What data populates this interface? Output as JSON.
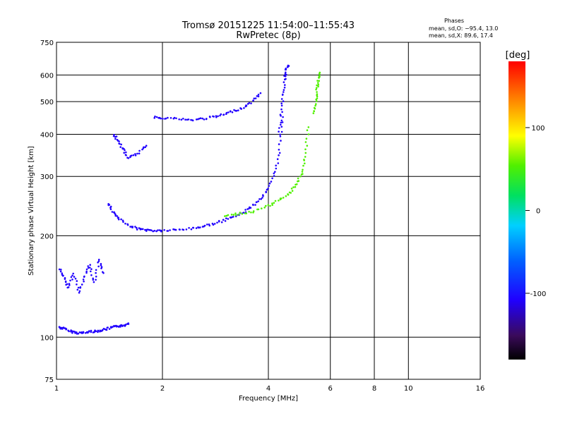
{
  "chart_data": {
    "type": "scatter",
    "title": "Tromsø 20151225 11:54:00–11:55:43",
    "subtitle": "RwPretec (8p)",
    "xlabel": "Frequency [MHz]",
    "ylabel": "Stationary phase Virtual Height [km]",
    "x_scale": "log",
    "y_scale": "log",
    "xlim": [
      1,
      16
    ],
    "ylim": [
      75,
      750
    ],
    "x_ticks": [
      1,
      2,
      4,
      6,
      8,
      10,
      16
    ],
    "y_ticks": [
      75,
      100,
      200,
      300,
      400,
      500,
      600,
      750
    ],
    "x_grid": [
      1,
      2,
      4,
      6,
      8,
      10,
      16
    ],
    "y_grid": [
      100,
      200,
      300,
      400,
      500,
      600
    ],
    "grid": true,
    "stats": {
      "heading": "Phases",
      "line_o": "mean, sd,O: −95.4, 13.0",
      "line_x": "mean, sd,X:  89.6, 17.4"
    },
    "colorbar": {
      "label": "[deg]",
      "min": -180,
      "max": 180,
      "ticks": [
        -100,
        0,
        100
      ]
    },
    "series": [
      {
        "phase": "O",
        "mean_phase": -95.4,
        "traces": [
          {
            "x": [
              1.02,
              1.05,
              1.1,
              1.15,
              1.2,
              1.25,
              1.3,
              1.35,
              1.4,
              1.45,
              1.5,
              1.55,
              1.6
            ],
            "y": [
              107,
              106,
              104,
              103,
              103,
              104,
              104,
              105,
              106,
              107,
              108,
              108,
              110
            ]
          },
          {
            "x": [
              1.02,
              1.05,
              1.08,
              1.12,
              1.16,
              1.2,
              1.24,
              1.28,
              1.32,
              1.36
            ],
            "y": [
              160,
              150,
              140,
              155,
              135,
              150,
              165,
              145,
              170,
              155
            ]
          },
          {
            "x": [
              1.4,
              1.45,
              1.5,
              1.6,
              1.7,
              1.8,
              1.9,
              2.0,
              2.2,
              2.4,
              2.6,
              2.8,
              3.0,
              3.2,
              3.4,
              3.6,
              3.8,
              4.0,
              4.2,
              4.3,
              4.4
            ],
            "y": [
              250,
              235,
              225,
              215,
              210,
              208,
              207,
              207,
              208,
              210,
              213,
              217,
              222,
              228,
              235,
              245,
              258,
              275,
              310,
              360,
              450
            ]
          },
          {
            "x": [
              1.45,
              1.5,
              1.55,
              1.6,
              1.7,
              1.8
            ],
            "y": [
              400,
              380,
              360,
              340,
              350,
              370
            ]
          },
          {
            "x": [
              1.9,
              2.0,
              2.2,
              2.4,
              2.6,
              2.8,
              3.0,
              3.2,
              3.4,
              3.6,
              3.8
            ],
            "y": [
              450,
              448,
              445,
              440,
              445,
              450,
              458,
              470,
              480,
              500,
              530
            ]
          },
          {
            "x": [
              4.3,
              4.35,
              4.4,
              4.45,
              4.5,
              4.55
            ],
            "y": [
              400,
              460,
              520,
              580,
              620,
              640
            ]
          }
        ]
      },
      {
        "phase": "X",
        "mean_phase": 89.6,
        "traces": [
          {
            "x": [
              3.0,
              3.3,
              3.6,
              4.0,
              4.3,
              4.6,
              4.8,
              5.0,
              5.1,
              5.2
            ],
            "y": [
              230,
              232,
              236,
              245,
              255,
              268,
              285,
              310,
              350,
              420
            ]
          },
          {
            "x": [
              5.4,
              5.45,
              5.5,
              5.55,
              5.6
            ],
            "y": [
              460,
              500,
              540,
              580,
              610
            ]
          }
        ]
      }
    ]
  }
}
